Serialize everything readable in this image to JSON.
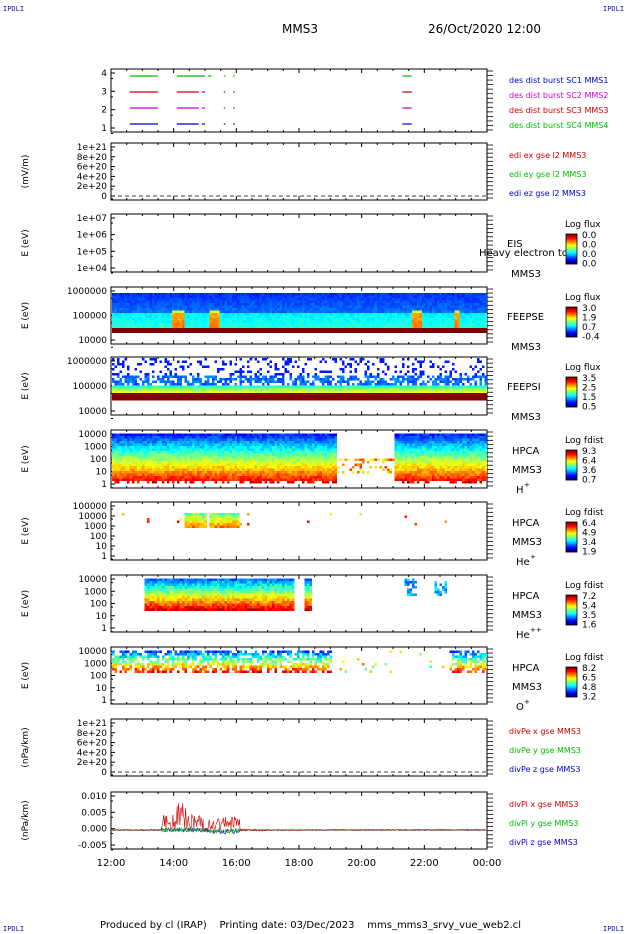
{
  "header": {
    "spacecraft": "MMS3",
    "datetime": "26/Oct/2020 12:00",
    "corner_label": "IPDLI"
  },
  "footer": {
    "produced_by": "Produced by cl (IRAP)",
    "printing_date": "Printing date: 03/Dec/2023",
    "script_name": "mms_mms3_srvy_vue_web2.cl"
  },
  "x_axis": {
    "ticks": [
      "12:00",
      "14:00",
      "16:00",
      "18:00",
      "20:00",
      "22:00",
      "00:00"
    ]
  },
  "chart_data": [
    {
      "id": "burst",
      "type": "line",
      "ylabel": "",
      "y_ticks": [
        "4",
        "3",
        "2",
        "1"
      ],
      "legend": [
        {
          "text": "des dist burst SC1 MMS1",
          "color": "#0000cc"
        },
        {
          "text": "des dist burst SC2 MMS2",
          "color": "#cc00cc"
        },
        {
          "text": "des dist burst SC3 MMS3",
          "color": "#cc0000"
        },
        {
          "text": "des dist burst SC4 MMS4",
          "color": "#00bb00"
        }
      ],
      "series": [
        {
          "sc": 4,
          "color": "#00bb00",
          "intervals": [
            [
              12.6,
              13.5
            ],
            [
              14.1,
              15.0
            ],
            [
              15.1,
              15.2
            ],
            [
              15.6,
              15.65
            ],
            [
              15.9,
              15.95
            ],
            [
              21.3,
              21.6
            ]
          ]
        },
        {
          "sc": 3,
          "color": "#cc0000",
          "intervals": [
            [
              12.6,
              13.5
            ],
            [
              14.1,
              14.8
            ],
            [
              14.9,
              15.0
            ],
            [
              15.6,
              15.65
            ],
            [
              15.9,
              15.95
            ],
            [
              21.3,
              21.6
            ]
          ]
        },
        {
          "sc": 2,
          "color": "#cc00cc",
          "intervals": [
            [
              12.6,
              13.5
            ],
            [
              14.1,
              14.8
            ],
            [
              14.9,
              15.0
            ],
            [
              15.6,
              15.65
            ],
            [
              15.9,
              15.95
            ],
            [
              21.3,
              21.6
            ]
          ]
        },
        {
          "sc": 1,
          "color": "#0000cc",
          "intervals": [
            [
              12.6,
              13.5
            ],
            [
              14.1,
              14.8
            ],
            [
              14.9,
              15.0
            ],
            [
              15.6,
              15.65
            ],
            [
              15.9,
              15.95
            ],
            [
              21.3,
              21.6
            ]
          ]
        }
      ]
    },
    {
      "id": "edi",
      "type": "line",
      "ylabel": "(mV/m)",
      "y_ticks": [
        "1e+21",
        "8e+20",
        "6e+20",
        "4e+20",
        "2e+20",
        "0"
      ],
      "legend": [
        {
          "text": "edi ex gse l2 MMS3",
          "color": "#cc0000"
        },
        {
          "text": "edi ey gse l2 MMS3",
          "color": "#00bb00"
        },
        {
          "text": "edi ez gse l2 MMS3",
          "color": "#0000cc"
        }
      ]
    },
    {
      "id": "eis",
      "type": "heatmap",
      "ylabel": "E (eV)",
      "y_ticks": [
        "1e+07",
        "1e+06",
        "1e+05",
        "1e+04"
      ],
      "instrument": "EIS",
      "spacecraft": "MMS3",
      "overlap_text": "Heavy electron to",
      "colorbar": {
        "title": "Log flux",
        "ticks": [
          "0.0",
          "0.0",
          "0.0",
          "0.0"
        ]
      }
    },
    {
      "id": "feepse",
      "type": "heatmap",
      "ylabel": "E (eV)",
      "y_ticks": [
        "1000000",
        "100000",
        "10000"
      ],
      "instrument": "FEEPSE",
      "spacecraft": "MMS3",
      "colorbar": {
        "title": "Log flux",
        "ticks": [
          "3.0",
          "1.9",
          "0.7",
          "-0.4"
        ]
      }
    },
    {
      "id": "feepsi",
      "type": "heatmap",
      "ylabel": "E (eV)",
      "y_ticks": [
        "1000000",
        "100000",
        "10000"
      ],
      "instrument": "FEEPSI",
      "spacecraft": "MMS3",
      "colorbar": {
        "title": "Log flux",
        "ticks": [
          "3.5",
          "2.5",
          "1.5",
          "0.5"
        ]
      }
    },
    {
      "id": "hpca_h",
      "type": "heatmap",
      "ylabel": "E (eV)",
      "y_ticks": [
        "10000",
        "1000",
        "100",
        "10",
        "1"
      ],
      "instrument": "HPCA",
      "spacecraft": "MMS3",
      "species": "H",
      "charge": "+",
      "colorbar": {
        "title": "Log fdist",
        "ticks": [
          "9.3",
          "6.4",
          "3.6",
          "0.7"
        ]
      }
    },
    {
      "id": "hpca_he",
      "type": "heatmap",
      "ylabel": "E (eV)",
      "y_ticks": [
        "100000",
        "10000",
        "1000",
        "100",
        "10",
        "1"
      ],
      "instrument": "HPCA",
      "spacecraft": "MMS3",
      "species": "He",
      "charge": "+",
      "colorbar": {
        "title": "Log fdist",
        "ticks": [
          "6.4",
          "4.9",
          "3.4",
          "1.9"
        ]
      }
    },
    {
      "id": "hpca_he2",
      "type": "heatmap",
      "ylabel": "E (eV)",
      "y_ticks": [
        "10000",
        "1000",
        "100",
        "10",
        "1"
      ],
      "instrument": "HPCA",
      "spacecraft": "MMS3",
      "species": "He",
      "charge": "++",
      "colorbar": {
        "title": "Log fdist",
        "ticks": [
          "7.2",
          "5.4",
          "3.5",
          "1.6"
        ]
      }
    },
    {
      "id": "hpca_o",
      "type": "heatmap",
      "ylabel": "E (eV)",
      "y_ticks": [
        "10000",
        "1000",
        "100",
        "10",
        "1"
      ],
      "instrument": "HPCA",
      "spacecraft": "MMS3",
      "species": "O",
      "charge": "+",
      "colorbar": {
        "title": "Log fdist",
        "ticks": [
          "8.2",
          "6.5",
          "4.8",
          "3.2"
        ]
      }
    },
    {
      "id": "divpe",
      "type": "line",
      "ylabel": "(nPa/km)",
      "y_ticks": [
        "1e+21",
        "8e+20",
        "6e+20",
        "4e+20",
        "2e+20",
        "0"
      ],
      "legend": [
        {
          "text": "divPe x gse MMS3",
          "color": "#cc0000"
        },
        {
          "text": "divPe y gse MMS3",
          "color": "#00bb00"
        },
        {
          "text": "divPe z gse MMS3",
          "color": "#0000cc"
        }
      ]
    },
    {
      "id": "divpi",
      "type": "line",
      "ylabel": "(nPa/km)",
      "y_ticks": [
        "0.010",
        "0.005",
        "0.000",
        "-0.005"
      ],
      "ylim": [
        -0.007,
        0.014
      ],
      "legend": [
        {
          "text": "divPi x gse MMS3",
          "color": "#cc0000"
        },
        {
          "text": "divPi y gse MMS3",
          "color": "#00bb00"
        },
        {
          "text": "divPi z gse MMS3",
          "color": "#0000cc"
        }
      ]
    }
  ]
}
